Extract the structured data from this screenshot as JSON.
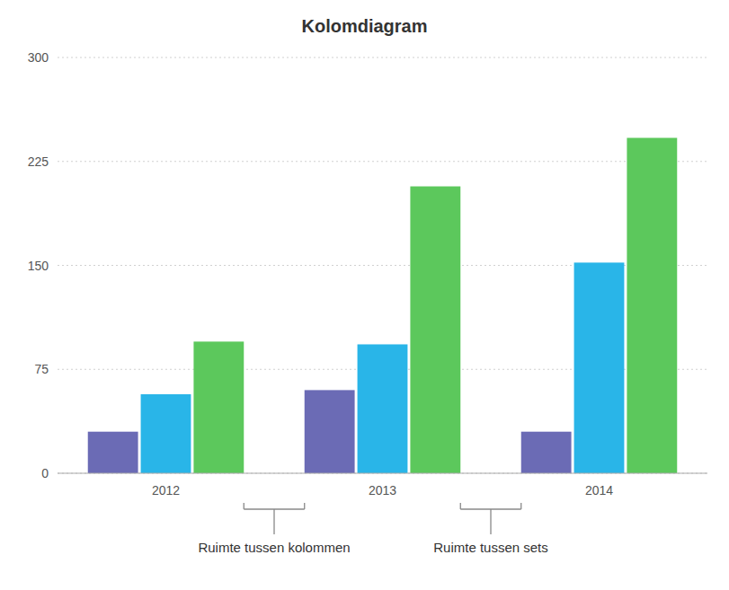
{
  "chart_data": {
    "type": "bar",
    "title": "Kolomdiagram",
    "categories": [
      "2012",
      "2013",
      "2014"
    ],
    "series": [
      {
        "color": "#6B6BB5",
        "values": [
          30,
          60,
          30
        ]
      },
      {
        "color": "#29B5E8",
        "values": [
          57,
          93,
          152
        ]
      },
      {
        "color": "#5CC85C",
        "values": [
          95,
          207,
          242
        ]
      }
    ],
    "ylim": [
      0,
      300
    ],
    "yticks": [
      0,
      75,
      150,
      225,
      300
    ],
    "grid": true,
    "annotations": [
      "Ruimte tussen kolommen",
      "Ruimte tussen sets"
    ]
  }
}
